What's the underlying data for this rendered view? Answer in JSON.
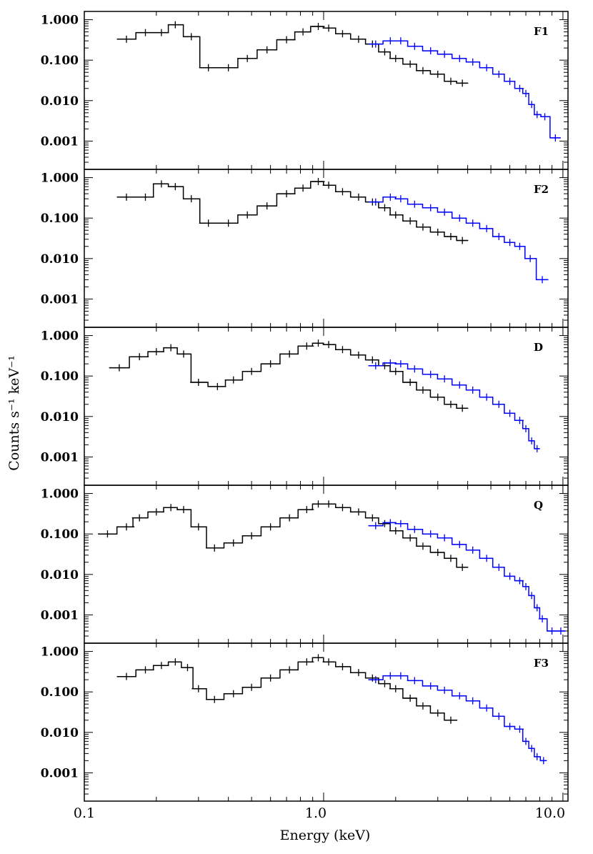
{
  "figure": {
    "xlabel": "Energy (keV)",
    "ylabel": "Counts s⁻¹ keV⁻¹",
    "x_ticks": [
      "0.1",
      "1.0",
      "10.0"
    ],
    "y_ticks": [
      "1.000",
      "0.100",
      "0.010",
      "0.001"
    ],
    "colors": {
      "instrument_1": "#000000",
      "instrument_2": "#0000ff",
      "frame": "#000000"
    }
  },
  "chart_data": [
    {
      "type": "line",
      "label": "F1",
      "xscale": "log",
      "yscale": "log",
      "xlim": [
        0.1,
        10.5
      ],
      "ylim": [
        0.0002,
        1.6
      ],
      "series": [
        {
          "name": "black",
          "color": "#000000",
          "x": [
            0.15,
            0.18,
            0.21,
            0.24,
            0.28,
            0.33,
            0.4,
            0.48,
            0.58,
            0.7,
            0.82,
            0.95,
            1.05,
            1.2,
            1.4,
            1.6,
            1.8,
            2.0,
            2.3,
            2.6,
            3.0,
            3.4,
            3.8
          ],
          "y": [
            0.33,
            0.48,
            0.48,
            0.75,
            0.38,
            0.065,
            0.065,
            0.11,
            0.18,
            0.32,
            0.5,
            0.68,
            0.62,
            0.45,
            0.33,
            0.25,
            0.16,
            0.11,
            0.08,
            0.055,
            0.045,
            0.03,
            0.027
          ]
        },
        {
          "name": "blue",
          "color": "#0000ff",
          "x": [
            1.65,
            1.9,
            2.1,
            2.4,
            2.8,
            3.2,
            3.7,
            4.2,
            4.8,
            5.4,
            6.0,
            6.6,
            7.0,
            7.4,
            7.8,
            8.4,
            9.3
          ],
          "y": [
            0.25,
            0.3,
            0.3,
            0.22,
            0.17,
            0.14,
            0.11,
            0.09,
            0.065,
            0.045,
            0.03,
            0.02,
            0.015,
            0.008,
            0.0045,
            0.004,
            0.0012
          ]
        }
      ]
    },
    {
      "type": "line",
      "label": "F2",
      "xscale": "log",
      "yscale": "log",
      "xlim": [
        0.1,
        10.5
      ],
      "ylim": [
        0.0002,
        1.6
      ],
      "series": [
        {
          "name": "black",
          "color": "#000000",
          "x": [
            0.15,
            0.18,
            0.21,
            0.24,
            0.28,
            0.33,
            0.4,
            0.48,
            0.58,
            0.7,
            0.82,
            0.95,
            1.05,
            1.2,
            1.4,
            1.6,
            1.8,
            2.0,
            2.3,
            2.6,
            3.0,
            3.4,
            3.8
          ],
          "y": [
            0.33,
            0.33,
            0.7,
            0.6,
            0.3,
            0.075,
            0.075,
            0.12,
            0.2,
            0.4,
            0.55,
            0.8,
            0.65,
            0.45,
            0.33,
            0.25,
            0.18,
            0.12,
            0.085,
            0.06,
            0.045,
            0.035,
            0.028
          ]
        },
        {
          "name": "blue",
          "color": "#0000ff",
          "x": [
            1.65,
            1.9,
            2.1,
            2.4,
            2.8,
            3.2,
            3.7,
            4.2,
            4.8,
            5.4,
            6.0,
            6.6,
            7.3,
            8.2
          ],
          "y": [
            0.25,
            0.33,
            0.3,
            0.22,
            0.18,
            0.14,
            0.1,
            0.075,
            0.055,
            0.035,
            0.025,
            0.02,
            0.01,
            0.003
          ]
        }
      ]
    },
    {
      "type": "line",
      "label": "D",
      "xscale": "log",
      "yscale": "log",
      "xlim": [
        0.1,
        10.5
      ],
      "ylim": [
        0.0002,
        1.6
      ],
      "series": [
        {
          "name": "black",
          "color": "#000000",
          "x": [
            0.14,
            0.17,
            0.2,
            0.23,
            0.26,
            0.3,
            0.36,
            0.42,
            0.5,
            0.6,
            0.72,
            0.85,
            0.95,
            1.05,
            1.2,
            1.4,
            1.6,
            1.8,
            2.0,
            2.3,
            2.6,
            3.0,
            3.4,
            3.8
          ],
          "y": [
            0.16,
            0.3,
            0.4,
            0.5,
            0.35,
            0.07,
            0.055,
            0.08,
            0.13,
            0.2,
            0.35,
            0.55,
            0.65,
            0.6,
            0.45,
            0.33,
            0.25,
            0.18,
            0.13,
            0.07,
            0.045,
            0.03,
            0.02,
            0.016
          ]
        },
        {
          "name": "blue",
          "color": "#0000ff",
          "x": [
            1.65,
            1.9,
            2.1,
            2.4,
            2.8,
            3.2,
            3.7,
            4.2,
            4.8,
            5.4,
            6.0,
            6.6,
            7.0,
            7.4,
            7.8
          ],
          "y": [
            0.18,
            0.21,
            0.2,
            0.15,
            0.11,
            0.085,
            0.06,
            0.045,
            0.03,
            0.02,
            0.012,
            0.008,
            0.005,
            0.0025,
            0.0016
          ]
        }
      ]
    },
    {
      "type": "line",
      "label": "Q",
      "xscale": "log",
      "yscale": "log",
      "xlim": [
        0.1,
        10.5
      ],
      "ylim": [
        0.0002,
        1.6
      ],
      "series": [
        {
          "name": "black",
          "color": "#000000",
          "x": [
            0.125,
            0.15,
            0.17,
            0.2,
            0.23,
            0.26,
            0.3,
            0.35,
            0.42,
            0.5,
            0.6,
            0.72,
            0.85,
            0.95,
            1.05,
            1.2,
            1.4,
            1.6,
            1.8,
            2.0,
            2.3,
            2.6,
            3.0,
            3.4,
            3.8
          ],
          "y": [
            0.1,
            0.15,
            0.25,
            0.35,
            0.45,
            0.4,
            0.15,
            0.045,
            0.06,
            0.09,
            0.15,
            0.25,
            0.4,
            0.55,
            0.55,
            0.45,
            0.35,
            0.25,
            0.18,
            0.12,
            0.08,
            0.05,
            0.035,
            0.025,
            0.015
          ]
        },
        {
          "name": "blue",
          "color": "#0000ff",
          "x": [
            1.65,
            1.9,
            2.1,
            2.4,
            2.8,
            3.2,
            3.7,
            4.2,
            4.8,
            5.4,
            6.0,
            6.6,
            7.0,
            7.4,
            7.8,
            8.2,
            9.0,
            9.8
          ],
          "y": [
            0.16,
            0.19,
            0.18,
            0.13,
            0.1,
            0.08,
            0.055,
            0.04,
            0.025,
            0.015,
            0.009,
            0.007,
            0.005,
            0.003,
            0.0015,
            0.0008,
            0.0004,
            0.0004
          ]
        }
      ]
    },
    {
      "type": "line",
      "label": "F3",
      "xscale": "log",
      "yscale": "log",
      "xlim": [
        0.1,
        10.5
      ],
      "ylim": [
        0.0002,
        1.6
      ],
      "series": [
        {
          "name": "black",
          "color": "#000000",
          "x": [
            0.15,
            0.18,
            0.21,
            0.24,
            0.27,
            0.3,
            0.35,
            0.42,
            0.5,
            0.6,
            0.72,
            0.85,
            0.95,
            1.05,
            1.2,
            1.4,
            1.6,
            1.8,
            2.0,
            2.3,
            2.6,
            3.0,
            3.4
          ],
          "y": [
            0.24,
            0.35,
            0.45,
            0.55,
            0.4,
            0.12,
            0.065,
            0.09,
            0.13,
            0.22,
            0.35,
            0.55,
            0.7,
            0.55,
            0.42,
            0.3,
            0.22,
            0.16,
            0.12,
            0.07,
            0.045,
            0.03,
            0.02
          ]
        },
        {
          "name": "blue",
          "color": "#0000ff",
          "x": [
            1.65,
            1.9,
            2.1,
            2.4,
            2.8,
            3.2,
            3.7,
            4.2,
            4.8,
            5.4,
            6.0,
            6.6,
            7.0,
            7.4,
            7.8,
            8.3
          ],
          "y": [
            0.2,
            0.25,
            0.25,
            0.19,
            0.14,
            0.11,
            0.08,
            0.06,
            0.04,
            0.025,
            0.014,
            0.012,
            0.006,
            0.004,
            0.0025,
            0.002
          ]
        }
      ]
    }
  ]
}
